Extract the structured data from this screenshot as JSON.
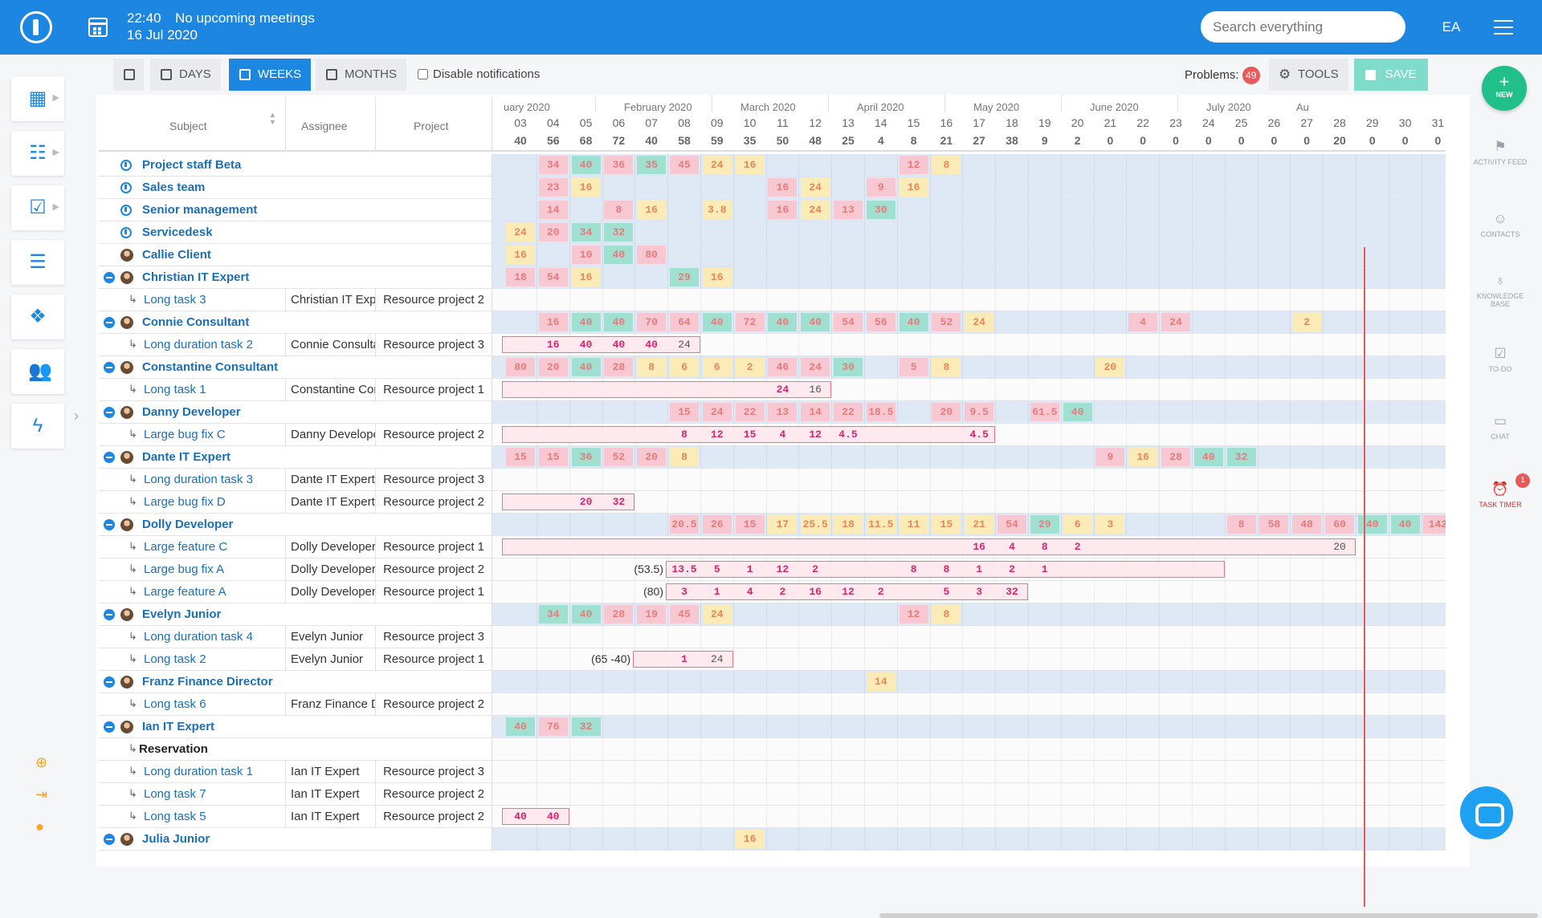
{
  "topbar": {
    "time": "22:40",
    "meetings": "No upcoming meetings",
    "date": "16 Jul 2020",
    "search_placeholder": "Search everything",
    "user_initials": "EA"
  },
  "leftnav": {
    "items": [
      "dashboard",
      "structure",
      "tasks",
      "list",
      "dropbox",
      "users",
      "quick-actions"
    ]
  },
  "toolbar": {
    "days": "DAYS",
    "weeks": "WEEKS",
    "months": "MONTHS",
    "notifications": "Disable notifications",
    "problems_label": "Problems:",
    "problems_count": "49",
    "tools": "TOOLS",
    "save": "SAVE"
  },
  "rightbar": {
    "new": "NEW",
    "activity": "ACTIVITY FEED",
    "contacts": "CONTACTS",
    "kb": "KNOWLEDGE BASE",
    "todo": "TO-DO",
    "chat": "CHAT",
    "timer": "TASK TIMER",
    "timer_badge": "1"
  },
  "grid": {
    "headers": {
      "subject": "Subject",
      "assignee": "Assignee",
      "project": "Project"
    },
    "months": [
      "uary 2020",
      "February 2020",
      "March 2020",
      "April 2020",
      "May 2020",
      "June 2020",
      "July 2020",
      "Au"
    ],
    "weeks": [
      "03",
      "04",
      "05",
      "06",
      "07",
      "08",
      "09",
      "10",
      "11",
      "12",
      "13",
      "14",
      "15",
      "16",
      "17",
      "18",
      "19",
      "20",
      "21",
      "22",
      "23",
      "24",
      "25",
      "26",
      "27",
      "28",
      "29",
      "30",
      "31"
    ],
    "totals": [
      "40",
      "56",
      "68",
      "72",
      "40",
      "58",
      "59",
      "35",
      "50",
      "48",
      "25",
      "4",
      "8",
      "21",
      "27",
      "38",
      "9",
      "2",
      "0",
      "0",
      "0",
      "0",
      "0",
      "0",
      "0",
      "20",
      "0",
      "0",
      "0"
    ],
    "rows": [
      {
        "kind": "grp",
        "icon": "res",
        "name": "Project staff Beta",
        "cells": [
          [
            "34",
            "p",
            1
          ],
          [
            "40",
            "g",
            2
          ],
          [
            "36",
            "p",
            3
          ],
          [
            "35",
            "g",
            4
          ],
          [
            "45",
            "p",
            5
          ],
          [
            "24",
            "y",
            6
          ],
          [
            "16",
            "y",
            7
          ],
          [
            "12",
            "p",
            12
          ],
          [
            "8",
            "y",
            13
          ]
        ]
      },
      {
        "kind": "grp",
        "icon": "res",
        "name": "Sales team",
        "cells": [
          [
            "23",
            "p",
            1
          ],
          [
            "16",
            "y",
            2
          ],
          [
            "16",
            "p",
            8
          ],
          [
            "24",
            "y",
            9
          ],
          [
            "9",
            "p",
            11
          ],
          [
            "16",
            "y",
            12
          ]
        ]
      },
      {
        "kind": "grp",
        "icon": "res",
        "name": "Senior management",
        "cells": [
          [
            "14",
            "p",
            1
          ],
          [
            "8",
            "p",
            3
          ],
          [
            "16",
            "y",
            4
          ],
          [
            "3.8",
            "y",
            6
          ],
          [
            "16",
            "p",
            8
          ],
          [
            "24",
            "y",
            9
          ],
          [
            "13",
            "p",
            10
          ],
          [
            "30",
            "g",
            11
          ]
        ]
      },
      {
        "kind": "grp",
        "icon": "res",
        "name": "Servicedesk",
        "cells": [
          [
            "24",
            "y",
            0
          ],
          [
            "20",
            "p",
            1
          ],
          [
            "34",
            "g",
            2
          ],
          [
            "32",
            "g",
            3
          ]
        ]
      },
      {
        "kind": "grp",
        "icon": "ava",
        "name": "Callie Client",
        "cells": [
          [
            "16",
            "y",
            0
          ],
          [
            "10",
            "p",
            2
          ],
          [
            "40",
            "g",
            3
          ],
          [
            "80",
            "p",
            4
          ]
        ]
      },
      {
        "kind": "grp",
        "icon": "ava",
        "collapse": true,
        "name": "Christian IT Expert",
        "cells": [
          [
            "18",
            "p",
            0
          ],
          [
            "54",
            "p",
            1
          ],
          [
            "16",
            "y",
            2
          ],
          [
            "29",
            "g",
            5
          ],
          [
            "16",
            "y",
            6
          ]
        ]
      },
      {
        "kind": "res",
        "task": "Long task 3",
        "assignee": "Christian IT Expert",
        "project": "Resource project 2",
        "cells": []
      },
      {
        "kind": "grp",
        "icon": "ava",
        "collapse": true,
        "name": "Connie Consultant",
        "cells": [
          [
            "16",
            "p",
            1
          ],
          [
            "40",
            "g",
            2
          ],
          [
            "40",
            "g",
            3
          ],
          [
            "70",
            "p",
            4
          ],
          [
            "64",
            "p",
            5
          ],
          [
            "40",
            "g",
            6
          ],
          [
            "72",
            "p",
            7
          ],
          [
            "40",
            "g",
            8
          ],
          [
            "40",
            "g",
            9
          ],
          [
            "54",
            "p",
            10
          ],
          [
            "56",
            "p",
            11
          ],
          [
            "40",
            "g",
            12
          ],
          [
            "52",
            "p",
            13
          ],
          [
            "24",
            "y",
            14
          ],
          [
            "4",
            "p",
            19
          ],
          [
            "24",
            "p",
            20
          ],
          [
            "2",
            "y",
            24
          ]
        ]
      },
      {
        "kind": "res",
        "task": "Long duration task 2",
        "assignee": "Connie Consultant",
        "project": "Resource project 3",
        "bar": [
          0,
          6
        ],
        "cells": [
          [
            "16",
            "b",
            1
          ],
          [
            "40",
            "b",
            2
          ],
          [
            "40",
            "b",
            3
          ],
          [
            "40",
            "b",
            4
          ],
          [
            "24",
            "n",
            5
          ]
        ]
      },
      {
        "kind": "grp",
        "icon": "ava",
        "collapse": true,
        "name": "Constantine Consultant",
        "cells": [
          [
            "80",
            "p",
            0
          ],
          [
            "20",
            "p",
            1
          ],
          [
            "40",
            "g",
            2
          ],
          [
            "28",
            "p",
            3
          ],
          [
            "8",
            "y",
            4
          ],
          [
            "6",
            "y",
            5
          ],
          [
            "6",
            "y",
            6
          ],
          [
            "2",
            "y",
            7
          ],
          [
            "46",
            "p",
            8
          ],
          [
            "24",
            "p",
            9
          ],
          [
            "30",
            "g",
            10
          ],
          [
            "5",
            "p",
            12
          ],
          [
            "8",
            "y",
            13
          ],
          [
            "20",
            "y",
            18
          ]
        ]
      },
      {
        "kind": "res",
        "task": "Long task 1",
        "assignee": "Constantine Consultant",
        "project": "Resource project 1",
        "bar": [
          0,
          10
        ],
        "cells": [
          [
            "24",
            "b",
            8
          ],
          [
            "16",
            "n",
            9
          ]
        ]
      },
      {
        "kind": "grp",
        "icon": "ava",
        "collapse": true,
        "name": "Danny Developer",
        "cells": [
          [
            "15",
            "p",
            5
          ],
          [
            "24",
            "p",
            6
          ],
          [
            "22",
            "p",
            7
          ],
          [
            "13",
            "p",
            8
          ],
          [
            "14",
            "p",
            9
          ],
          [
            "22",
            "p",
            10
          ],
          [
            "18.5",
            "p",
            11
          ],
          [
            "20",
            "p",
            13
          ],
          [
            "9.5",
            "p",
            14
          ],
          [
            "61.5",
            "p",
            16
          ],
          [
            "40",
            "g",
            17
          ]
        ]
      },
      {
        "kind": "res",
        "task": "Large bug fix C",
        "assignee": "Danny Developer",
        "project": "Resource project 2",
        "bar": [
          0,
          15
        ],
        "cells": [
          [
            "8",
            "b",
            5
          ],
          [
            "12",
            "b",
            6
          ],
          [
            "15",
            "b",
            7
          ],
          [
            "4",
            "b",
            8
          ],
          [
            "12",
            "b",
            9
          ],
          [
            "4.5",
            "b",
            10
          ],
          [
            "4.5",
            "b",
            14
          ]
        ]
      },
      {
        "kind": "grp",
        "icon": "ava",
        "collapse": true,
        "name": "Dante IT Expert",
        "cells": [
          [
            "15",
            "p",
            0
          ],
          [
            "15",
            "p",
            1
          ],
          [
            "36",
            "g",
            2
          ],
          [
            "52",
            "p",
            3
          ],
          [
            "20",
            "p",
            4
          ],
          [
            "8",
            "y",
            5
          ],
          [
            "9",
            "p",
            18
          ],
          [
            "16",
            "y",
            19
          ],
          [
            "28",
            "p",
            20
          ],
          [
            "40",
            "g",
            21
          ],
          [
            "32",
            "g",
            22
          ]
        ]
      },
      {
        "kind": "res",
        "task": "Long duration task 3",
        "assignee": "Dante IT Expert",
        "project": "Resource project 3",
        "cells": []
      },
      {
        "kind": "res",
        "task": "Large bug fix D",
        "assignee": "Dante IT Expert",
        "project": "Resource project 2",
        "bar": [
          0,
          4
        ],
        "cells": [
          [
            "20",
            "b",
            2
          ],
          [
            "32",
            "b",
            3
          ]
        ]
      },
      {
        "kind": "grp",
        "icon": "ava",
        "collapse": true,
        "name": "Dolly Developer",
        "cells": [
          [
            "20.5",
            "p",
            5
          ],
          [
            "26",
            "p",
            6
          ],
          [
            "15",
            "p",
            7
          ],
          [
            "17",
            "y",
            8
          ],
          [
            "25.5",
            "y",
            9
          ],
          [
            "18",
            "y",
            10
          ],
          [
            "11.5",
            "y",
            11
          ],
          [
            "11",
            "y",
            12
          ],
          [
            "15",
            "y",
            13
          ],
          [
            "21",
            "y",
            14
          ],
          [
            "54",
            "p",
            15
          ],
          [
            "29",
            "g",
            16
          ],
          [
            "6",
            "y",
            17
          ],
          [
            "3",
            "y",
            18
          ],
          [
            "8",
            "p",
            22
          ],
          [
            "58",
            "p",
            23
          ],
          [
            "48",
            "p",
            24
          ],
          [
            "60",
            "p",
            25
          ],
          [
            "40",
            "g",
            26
          ],
          [
            "40",
            "g",
            27
          ],
          [
            "142",
            "p",
            28
          ]
        ]
      },
      {
        "kind": "res",
        "task": "Large feature C",
        "assignee": "Dolly Developer",
        "project": "Resource project 1",
        "bar": [
          0,
          26
        ],
        "cells": [
          [
            "16",
            "b",
            14
          ],
          [
            "4",
            "b",
            15
          ],
          [
            "8",
            "b",
            16
          ],
          [
            "2",
            "b",
            17
          ],
          [
            "20",
            "n",
            25
          ]
        ]
      },
      {
        "kind": "res",
        "task": "Large bug fix A",
        "assignee": "Dolly Developer",
        "project": "Resource project 2",
        "note": "(53.5)",
        "bar": [
          5,
          22
        ],
        "cells": [
          [
            "13.5",
            "b",
            5
          ],
          [
            "5",
            "b",
            6
          ],
          [
            "1",
            "b",
            7
          ],
          [
            "12",
            "b",
            8
          ],
          [
            "2",
            "b",
            9
          ],
          [
            "8",
            "b",
            12
          ],
          [
            "8",
            "b",
            13
          ],
          [
            "1",
            "b",
            14
          ],
          [
            "2",
            "b",
            15
          ],
          [
            "1",
            "b",
            16
          ]
        ]
      },
      {
        "kind": "res",
        "task": "Large feature A",
        "assignee": "Dolly Developer",
        "project": "Resource project 1",
        "note": "(80)",
        "bar": [
          5,
          16
        ],
        "cells": [
          [
            "3",
            "b",
            5
          ],
          [
            "1",
            "b",
            6
          ],
          [
            "4",
            "b",
            7
          ],
          [
            "2",
            "b",
            8
          ],
          [
            "16",
            "b",
            9
          ],
          [
            "12",
            "b",
            10
          ],
          [
            "2",
            "b",
            11
          ],
          [
            "5",
            "b",
            13
          ],
          [
            "3",
            "b",
            14
          ],
          [
            "32",
            "b",
            15
          ]
        ]
      },
      {
        "kind": "grp",
        "icon": "ava",
        "collapse": true,
        "name": "Evelyn Junior",
        "cells": [
          [
            "34",
            "g",
            1
          ],
          [
            "40",
            "g",
            2
          ],
          [
            "28",
            "p",
            3
          ],
          [
            "19",
            "p",
            4
          ],
          [
            "45",
            "p",
            5
          ],
          [
            "24",
            "y",
            6
          ],
          [
            "12",
            "p",
            12
          ],
          [
            "8",
            "y",
            13
          ]
        ]
      },
      {
        "kind": "res",
        "task": "Long duration task 4",
        "assignee": "Evelyn Junior",
        "project": "Resource project 3",
        "cells": []
      },
      {
        "kind": "res",
        "task": "Long task 2",
        "assignee": "Evelyn Junior",
        "project": "Resource project 1",
        "note": "(65 -40)",
        "bar": [
          4,
          7
        ],
        "cells": [
          [
            "1",
            "b",
            5
          ],
          [
            "24",
            "n",
            6
          ]
        ]
      },
      {
        "kind": "grp",
        "icon": "ava",
        "collapse": true,
        "name": "Franz Finance Director",
        "cells": [
          [
            "14",
            "y",
            11
          ]
        ]
      },
      {
        "kind": "res",
        "task": "Long task 6",
        "assignee": "Franz Finance Director",
        "project": "Resource project 2",
        "cells": []
      },
      {
        "kind": "grp",
        "icon": "ava",
        "collapse": true,
        "name": "Ian IT Expert",
        "cells": [
          [
            "40",
            "g",
            0
          ],
          [
            "76",
            "p",
            1
          ],
          [
            "32",
            "g",
            2
          ]
        ]
      },
      {
        "kind": "res",
        "task": "Reservation",
        "plain": true,
        "cells": []
      },
      {
        "kind": "res",
        "task": "Long duration task 1",
        "assignee": "Ian IT Expert",
        "project": "Resource project 3",
        "cells": []
      },
      {
        "kind": "res",
        "task": "Long task 7",
        "assignee": "Ian IT Expert",
        "project": "Resource project 2",
        "cells": []
      },
      {
        "kind": "res",
        "task": "Long task 5",
        "assignee": "Ian IT Expert",
        "project": "Resource project 2",
        "bar": [
          0,
          2
        ],
        "cells": [
          [
            "40",
            "b",
            0
          ],
          [
            "40",
            "b",
            1
          ]
        ]
      },
      {
        "kind": "grp",
        "icon": "ava",
        "collapse": true,
        "name": "Julia Junior",
        "cells": [
          [
            "16",
            "y",
            7
          ]
        ]
      }
    ]
  }
}
